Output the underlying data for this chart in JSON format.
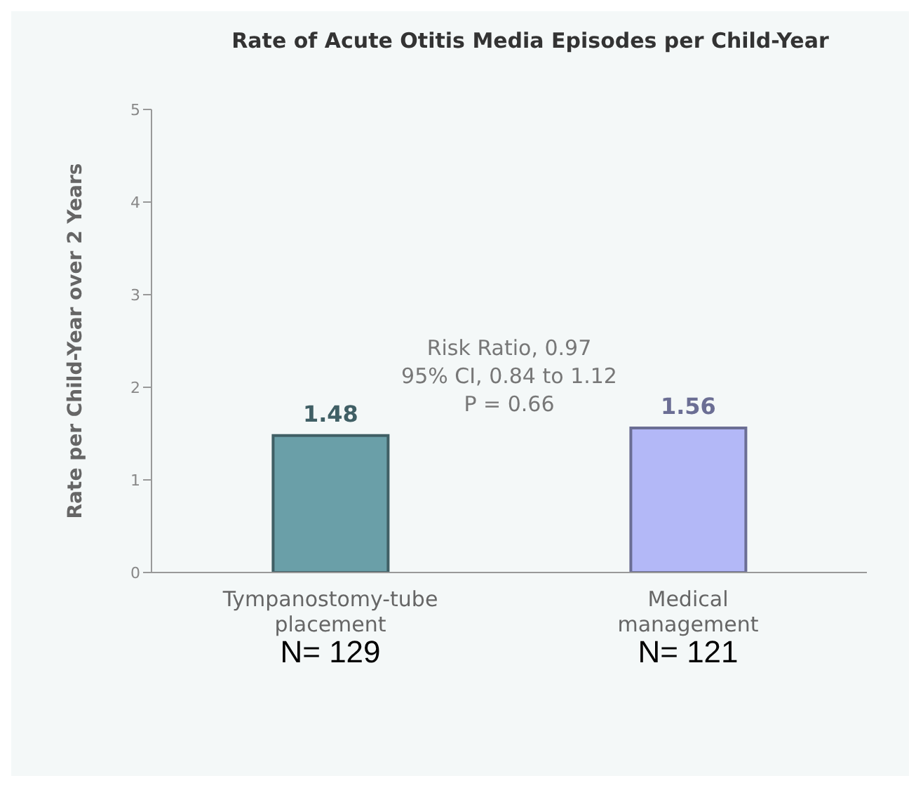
{
  "chart_data": {
    "type": "bar",
    "title": "Rate of Acute Otitis Media Episodes per Child-Year",
    "ylabel": "Rate per Child-Year over 2 Years",
    "categories": [
      "Tympanostomy-tube placement",
      "Medical management"
    ],
    "values": [
      1.48,
      1.56
    ],
    "colors": [
      "#6a9fa8",
      "#b3b8f7"
    ],
    "ylim": [
      0,
      5
    ],
    "yticks": [
      0,
      1,
      2,
      3,
      4,
      5
    ],
    "data_labels": true,
    "annotations": [
      "Risk Ratio, 0.97",
      "95% CI, 0.84 to 1.12",
      "P = 0.66",
      "N= 129",
      "N= 121"
    ]
  }
}
